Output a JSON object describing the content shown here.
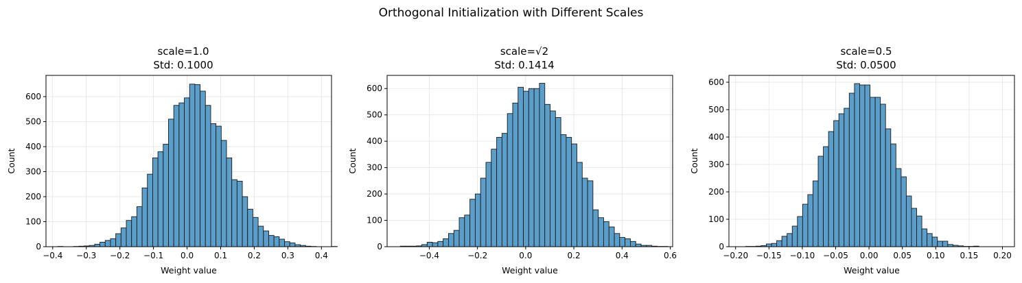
{
  "figure": {
    "suptitle": "Orthogonal Initialization with Different Scales"
  },
  "colors": {
    "bar_fill": "#5b9ec9",
    "bar_edge": "#1a1a1a",
    "grid": "#e3e3e3",
    "axes": "#000000"
  },
  "chart_data": [
    {
      "type": "bar",
      "title_line1": "scale=1.0",
      "title_line2": "Std: 0.1000",
      "xlabel": "Weight value",
      "ylabel": "Count",
      "xlim": [
        -0.42,
        0.43
      ],
      "ylim": [
        0,
        685
      ],
      "xticks": [
        -0.4,
        -0.3,
        -0.2,
        -0.1,
        0.0,
        0.1,
        0.2,
        0.3,
        0.4
      ],
      "xtick_labels": [
        "−0.4",
        "−0.3",
        "−0.2",
        "−0.1",
        "0.0",
        "0.1",
        "0.2",
        "0.3",
        "0.4"
      ],
      "yticks": [
        0,
        100,
        200,
        300,
        400,
        500,
        600
      ],
      "ytick_labels": [
        "0",
        "100",
        "200",
        "300",
        "400",
        "500",
        "600"
      ],
      "grid": true,
      "bin_start": -0.385,
      "bin_width": 0.0157,
      "values": [
        1,
        0,
        0,
        1,
        2,
        3,
        5,
        10,
        18,
        25,
        32,
        52,
        75,
        105,
        120,
        160,
        235,
        290,
        355,
        380,
        410,
        510,
        565,
        575,
        595,
        650,
        648,
        622,
        565,
        492,
        482,
        425,
        355,
        268,
        262,
        200,
        150,
        117,
        82,
        63,
        45,
        40,
        30,
        20,
        15,
        8,
        5,
        2,
        1,
        0,
        0,
        0,
        1
      ]
    },
    {
      "type": "bar",
      "title_line1": "scale=√2",
      "title_line2": "Std: 0.1414",
      "xlabel": "Weight value",
      "ylabel": "Count",
      "xlim": [
        -0.575,
        0.61
      ],
      "ylim": [
        0,
        650
      ],
      "xticks": [
        -0.4,
        -0.2,
        0.0,
        0.2,
        0.4,
        0.6
      ],
      "xtick_labels": [
        "−0.4",
        "−0.2",
        "0.0",
        "0.2",
        "0.4",
        "0.6"
      ],
      "yticks": [
        0,
        100,
        200,
        300,
        400,
        500,
        600
      ],
      "ytick_labels": [
        "0",
        "100",
        "200",
        "300",
        "400",
        "500",
        "600"
      ],
      "grid": true,
      "bin_start": -0.52,
      "bin_width": 0.0222,
      "values": [
        2,
        2,
        2,
        3,
        8,
        17,
        15,
        20,
        30,
        50,
        62,
        110,
        120,
        180,
        200,
        260,
        320,
        370,
        415,
        430,
        505,
        545,
        605,
        590,
        600,
        600,
        620,
        540,
        515,
        490,
        425,
        415,
        390,
        320,
        260,
        250,
        140,
        110,
        95,
        75,
        50,
        35,
        30,
        20,
        10,
        5,
        5,
        2,
        1,
        1,
        0
      ]
    },
    {
      "type": "bar",
      "title_line1": "scale=0.5",
      "title_line2": "Std: 0.0500",
      "xlabel": "Weight value",
      "ylabel": "Count",
      "xlim": [
        -0.21,
        0.218
      ],
      "ylim": [
        0,
        625
      ],
      "xticks": [
        -0.2,
        -0.15,
        -0.1,
        -0.05,
        0.0,
        0.05,
        0.1,
        0.15,
        0.2
      ],
      "xtick_labels": [
        "−0.20",
        "−0.15",
        "−0.10",
        "−0.05",
        "0.00",
        "0.05",
        "0.10",
        "0.15",
        "0.20"
      ],
      "yticks": [
        0,
        100,
        200,
        300,
        400,
        500,
        600
      ],
      "ytick_labels": [
        "0",
        "100",
        "200",
        "300",
        "400",
        "500",
        "600"
      ],
      "grid": true,
      "bin_start": -0.185,
      "bin_width": 0.00777,
      "values": [
        1,
        1,
        2,
        4,
        10,
        12,
        22,
        38,
        48,
        75,
        110,
        155,
        190,
        240,
        330,
        365,
        420,
        460,
        485,
        505,
        560,
        595,
        590,
        590,
        545,
        545,
        520,
        430,
        375,
        285,
        255,
        185,
        140,
        112,
        65,
        48,
        35,
        20,
        20,
        8,
        5,
        3,
        1,
        1,
        2
      ]
    }
  ]
}
